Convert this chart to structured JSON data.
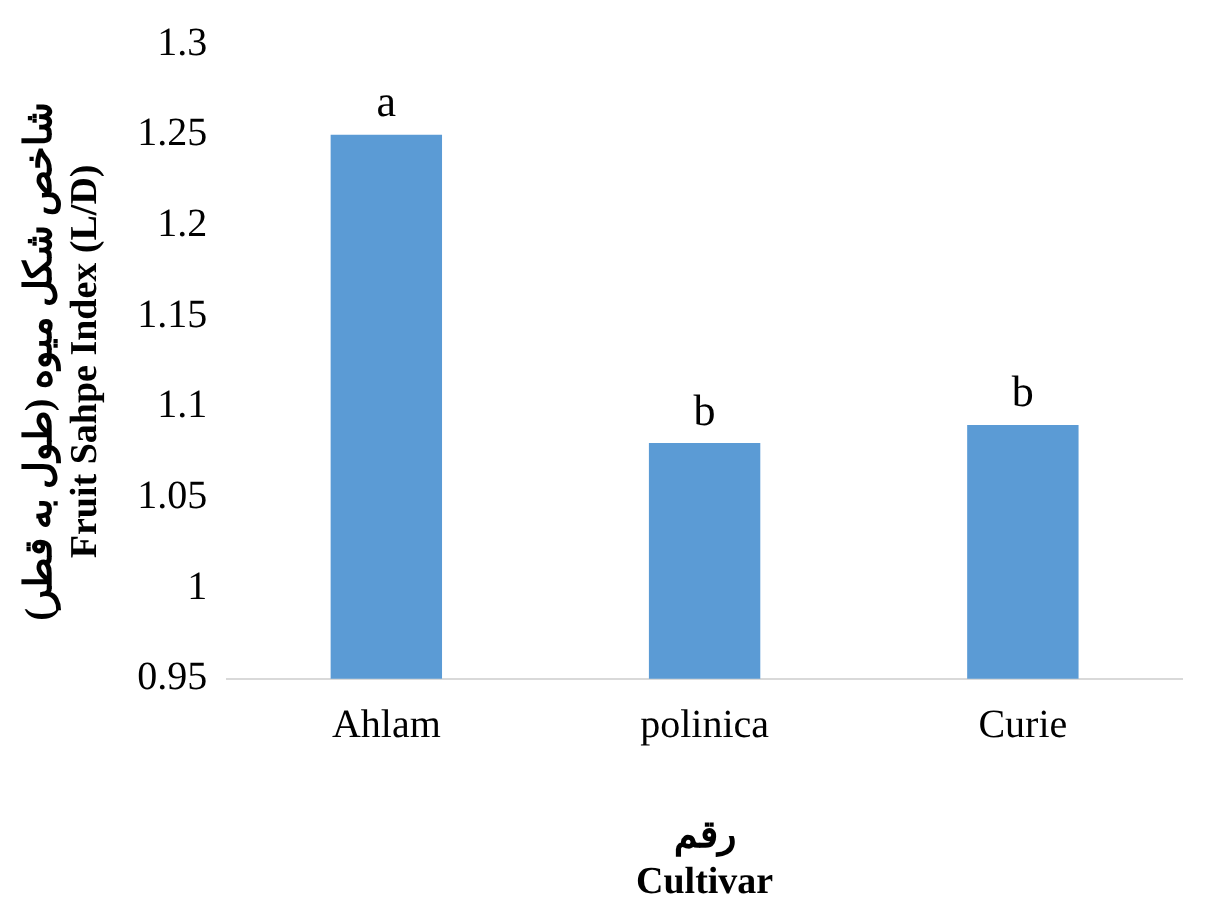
{
  "chart_data": {
    "type": "bar",
    "xlabel": "رقم\nCultivar",
    "ylabel": "شاخص شکل میوه (طول به قطر)\nFruit Sahpe Index (L/D)",
    "categories": [
      "Ahlam",
      "polinica",
      "Curie"
    ],
    "values": [
      1.25,
      1.08,
      1.09
    ],
    "color": "#5b9bd5",
    "ylim": [
      0.95,
      1.3
    ],
    "yticks": [
      0.95,
      1,
      1.05,
      1.1,
      1.15,
      1.2,
      1.25,
      1.3
    ],
    "grid": false,
    "annotations": [
      {
        "text": "a",
        "x": "Ahlam",
        "y": 1.25
      },
      {
        "text": "b",
        "x": "polinica",
        "y": 1.08
      },
      {
        "text": "b",
        "x": "Curie",
        "y": 1.09
      }
    ]
  }
}
